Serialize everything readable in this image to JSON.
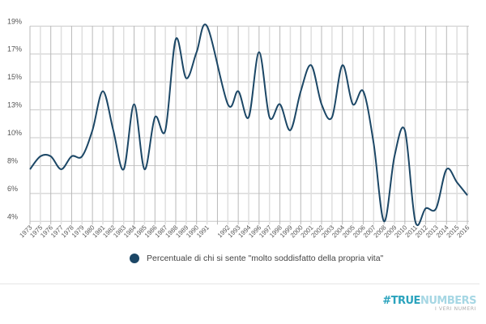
{
  "chart_data": {
    "type": "line",
    "title": "",
    "xlabel": "",
    "ylabel": "",
    "categories": [
      "1973",
      "1975",
      "1976",
      "1977",
      "1978",
      "1979",
      "1980",
      "1981",
      "1982",
      "1983",
      "1984",
      "1985",
      "1986",
      "1987",
      "1988",
      "1989",
      "1990",
      "1991",
      "",
      "1992",
      "1993",
      "1994",
      "1996",
      "1997",
      "1998",
      "1999",
      "2000",
      "2001",
      "2002",
      "2003",
      "2004",
      "2005",
      "2006",
      "2007",
      "2008",
      "2009",
      "2010",
      "2011",
      "2012",
      "2013",
      "2014",
      "2015",
      "2016"
    ],
    "series": [
      {
        "name": "Percentuale di chi si sente \"molto soddisfatto della propria vita\"",
        "values": [
          8,
          9,
          9,
          8,
          9,
          9,
          11,
          14,
          11,
          8,
          13,
          8,
          12,
          11,
          18,
          15,
          17,
          19,
          null,
          13,
          14,
          12,
          17,
          12,
          13,
          11,
          14,
          16,
          13,
          12,
          16,
          13,
          14,
          10,
          4,
          9,
          11,
          4,
          5,
          5,
          8,
          7,
          6
        ]
      }
    ],
    "ylim": [
      4,
      19
    ],
    "yticks": [
      "4%",
      "6%",
      "8%",
      "10%",
      "13%",
      "15%",
      "17%",
      "19%"
    ],
    "grid": true,
    "smooth": true,
    "legend_position": "bottom",
    "colors": {
      "line": "#1c4766",
      "grid": "#c8c8c8"
    }
  },
  "legend": {
    "label": "Percentuale di chi si sente \"molto soddisfatto della propria vita\""
  },
  "logo": {
    "hash_true": "#TRUE",
    "numbers": "NUMBERS",
    "tagline": "I VERI NUMERI",
    "color1": "#2aa3bd",
    "color2": "#a6d7e4"
  }
}
